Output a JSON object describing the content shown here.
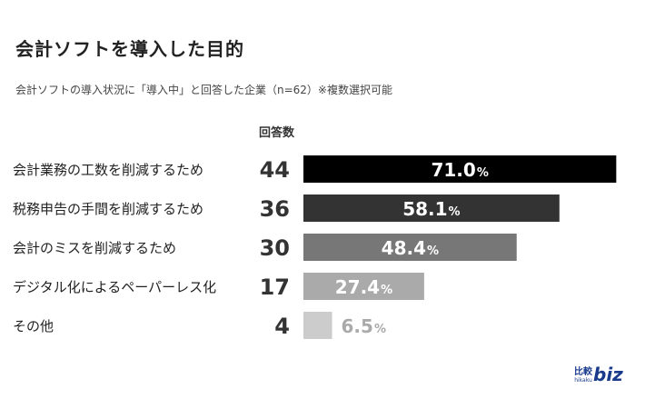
{
  "title": "会計ソフトを導入した目的",
  "subtitle": "会計ソフトの導入状況に「導入中」と回答した企業（n=62）※複数選択可能",
  "column_header": "回答数",
  "logo": {
    "kanji": "比較",
    "romaji": "hikaku",
    "text": "biz"
  },
  "colors": {
    "bar_1": "#000000",
    "bar_2": "#333333",
    "bar_3": "#777777",
    "bar_4": "#aaaaaa",
    "bar_5": "#cccccc",
    "label_on_bar": "#ffffff",
    "label_outside": "#aaaaaa",
    "logo": "#1a3a8c"
  },
  "chart_data": {
    "type": "bar",
    "orientation": "horizontal",
    "categories": [
      "会計業務の工数を削減するため",
      "税務申告の手間を削減するため",
      "会計のミスを削減するため",
      "デジタル化によるペーパーレス化",
      "その他"
    ],
    "counts": [
      44,
      36,
      30,
      17,
      4
    ],
    "values": [
      71.0,
      58.1,
      48.4,
      27.4,
      6.5
    ],
    "value_labels": [
      "71.0",
      "58.1",
      "48.4",
      "27.4",
      "6.5"
    ],
    "unit": "%",
    "xlim": [
      0,
      100
    ],
    "grid": false,
    "legend": "none"
  }
}
